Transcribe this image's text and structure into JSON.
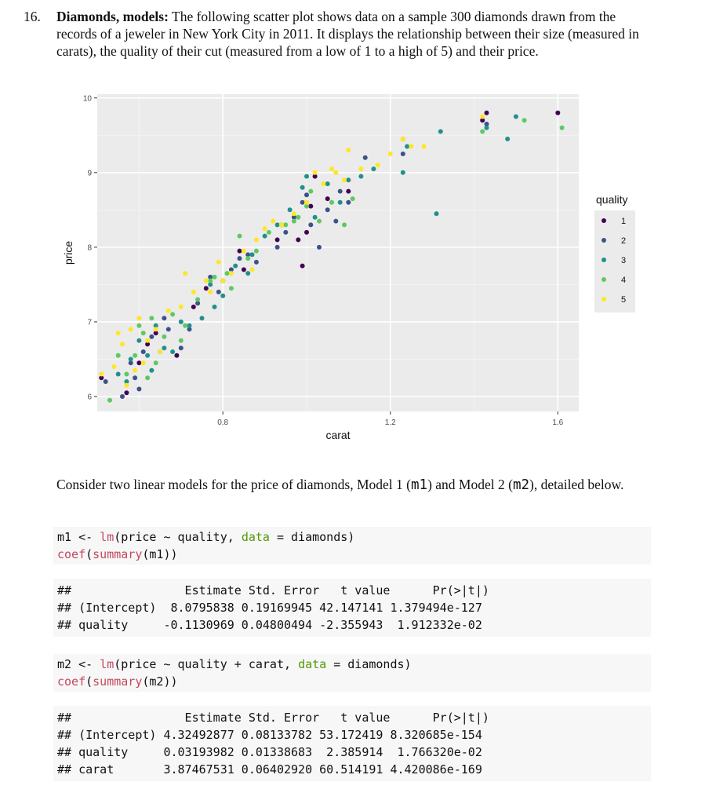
{
  "problem": {
    "number": "16.",
    "title": "Diamonds, models:",
    "intro": "The following scatter plot shows data on a sample 300 diamonds drawn from the records of a jeweler in New York City in 2011. It displays the relationship between their size (measured in carats), the quality of their cut (measured from a low of 1 to a high of 5) and their price."
  },
  "chart_data": {
    "type": "scatter",
    "xlabel": "carat",
    "ylabel": "price",
    "xlim": [
      0.5,
      1.65
    ],
    "ylim": [
      5.8,
      10.05
    ],
    "x_ticks": [
      0.8,
      1.2,
      1.6
    ],
    "x_tick_labels": [
      "0.8",
      "1.2",
      "1.6"
    ],
    "y_ticks": [
      6,
      7,
      8,
      9,
      10
    ],
    "y_tick_labels": [
      "6",
      "7",
      "8",
      "9",
      "10"
    ],
    "grid": true,
    "legend_title": "quality",
    "legend_position": "right",
    "series": [
      {
        "name": "1",
        "color": "#440154",
        "points": [
          [
            0.51,
            6.25
          ],
          [
            0.57,
            6.05
          ],
          [
            0.6,
            6.45
          ],
          [
            0.64,
            6.85
          ],
          [
            0.73,
            7.2
          ],
          [
            0.76,
            7.45
          ],
          [
            0.84,
            7.95
          ],
          [
            0.85,
            7.7
          ],
          [
            0.98,
            8.1
          ],
          [
            0.99,
            7.75
          ],
          [
            1.0,
            8.2
          ],
          [
            1.01,
            8.55
          ],
          [
            1.02,
            8.95
          ],
          [
            1.1,
            8.75
          ],
          [
            1.42,
            9.7
          ],
          [
            1.43,
            9.8
          ],
          [
            1.6,
            9.8
          ],
          [
            0.8,
            7.55
          ],
          [
            0.93,
            8.1
          ],
          [
            1.05,
            8.65
          ],
          [
            0.62,
            6.7
          ],
          [
            0.69,
            6.55
          ]
        ]
      },
      {
        "name": "2",
        "color": "#3b528b",
        "points": [
          [
            0.52,
            6.2
          ],
          [
            0.56,
            6.0
          ],
          [
            0.59,
            6.25
          ],
          [
            0.61,
            6.6
          ],
          [
            0.63,
            6.8
          ],
          [
            0.65,
            6.6
          ],
          [
            0.67,
            6.9
          ],
          [
            0.7,
            6.65
          ],
          [
            0.74,
            7.25
          ],
          [
            0.77,
            7.6
          ],
          [
            0.82,
            7.7
          ],
          [
            0.84,
            7.85
          ],
          [
            0.86,
            7.9
          ],
          [
            0.93,
            8.0
          ],
          [
            0.94,
            8.3
          ],
          [
            0.97,
            8.4
          ],
          [
            0.99,
            8.6
          ],
          [
            1.01,
            8.3
          ],
          [
            1.03,
            8.0
          ],
          [
            1.05,
            8.5
          ],
          [
            1.08,
            8.75
          ],
          [
            1.1,
            8.6
          ],
          [
            1.14,
            9.2
          ],
          [
            1.23,
            9.25
          ],
          [
            1.43,
            9.65
          ],
          [
            0.58,
            6.45
          ],
          [
            0.66,
            7.05
          ],
          [
            0.95,
            8.2
          ],
          [
            1.07,
            8.35
          ],
          [
            0.88,
            7.8
          ],
          [
            0.79,
            7.4
          ],
          [
            0.6,
            6.1
          ],
          [
            1.0,
            8.7
          ],
          [
            0.72,
            6.9
          ]
        ]
      },
      {
        "name": "3",
        "color": "#21908c",
        "points": [
          [
            0.55,
            6.3
          ],
          [
            0.58,
            6.5
          ],
          [
            0.6,
            6.75
          ],
          [
            0.62,
            6.55
          ],
          [
            0.64,
            6.95
          ],
          [
            0.66,
            6.65
          ],
          [
            0.7,
            7.0
          ],
          [
            0.75,
            7.05
          ],
          [
            0.77,
            7.5
          ],
          [
            0.8,
            7.35
          ],
          [
            0.83,
            7.75
          ],
          [
            0.87,
            7.9
          ],
          [
            0.93,
            8.3
          ],
          [
            0.96,
            8.5
          ],
          [
            0.99,
            8.8
          ],
          [
            1.02,
            8.4
          ],
          [
            1.05,
            8.85
          ],
          [
            1.08,
            8.6
          ],
          [
            1.1,
            8.9
          ],
          [
            1.13,
            8.95
          ],
          [
            1.16,
            9.05
          ],
          [
            1.23,
            9.0
          ],
          [
            1.24,
            9.35
          ],
          [
            1.31,
            8.45
          ],
          [
            1.32,
            9.55
          ],
          [
            1.43,
            9.6
          ],
          [
            1.48,
            9.45
          ],
          [
            1.5,
            9.75
          ],
          [
            0.68,
            6.6
          ],
          [
            0.72,
            6.95
          ],
          [
            0.57,
            6.2
          ],
          [
            0.63,
            6.35
          ],
          [
            0.9,
            8.15
          ],
          [
            1.0,
            8.95
          ],
          [
            0.86,
            7.65
          ],
          [
            0.78,
            7.2
          ]
        ]
      },
      {
        "name": "4",
        "color": "#5ec962",
        "points": [
          [
            0.53,
            5.95
          ],
          [
            0.57,
            6.3
          ],
          [
            0.59,
            6.55
          ],
          [
            0.61,
            6.85
          ],
          [
            0.63,
            7.05
          ],
          [
            0.66,
            6.8
          ],
          [
            0.68,
            7.1
          ],
          [
            0.71,
            6.95
          ],
          [
            0.74,
            7.3
          ],
          [
            0.77,
            7.55
          ],
          [
            0.81,
            7.65
          ],
          [
            0.84,
            8.15
          ],
          [
            0.86,
            7.85
          ],
          [
            0.91,
            8.2
          ],
          [
            0.95,
            8.3
          ],
          [
            0.98,
            8.4
          ],
          [
            1.0,
            8.55
          ],
          [
            1.03,
            8.35
          ],
          [
            1.06,
            8.6
          ],
          [
            1.09,
            8.3
          ],
          [
            1.11,
            8.65
          ],
          [
            1.23,
            9.45
          ],
          [
            1.42,
            9.55
          ],
          [
            1.52,
            9.7
          ],
          [
            1.61,
            9.6
          ],
          [
            0.6,
            6.95
          ],
          [
            0.64,
            6.45
          ],
          [
            0.7,
            6.75
          ],
          [
            0.82,
            7.45
          ],
          [
            0.97,
            8.35
          ],
          [
            1.01,
            8.75
          ],
          [
            0.55,
            6.55
          ],
          [
            0.62,
            6.25
          ],
          [
            0.78,
            7.6
          ],
          [
            0.88,
            7.95
          ]
        ]
      },
      {
        "name": "5",
        "color": "#fde725",
        "points": [
          [
            0.51,
            6.3
          ],
          [
            0.54,
            6.4
          ],
          [
            0.56,
            6.7
          ],
          [
            0.58,
            6.9
          ],
          [
            0.6,
            7.05
          ],
          [
            0.62,
            6.75
          ],
          [
            0.64,
            6.9
          ],
          [
            0.67,
            7.15
          ],
          [
            0.7,
            7.2
          ],
          [
            0.73,
            7.4
          ],
          [
            0.76,
            7.55
          ],
          [
            0.79,
            7.8
          ],
          [
            0.82,
            7.65
          ],
          [
            0.85,
            7.95
          ],
          [
            0.88,
            8.1
          ],
          [
            0.9,
            8.25
          ],
          [
            0.94,
            8.3
          ],
          [
            0.97,
            8.45
          ],
          [
            1.0,
            8.6
          ],
          [
            1.02,
            9.0
          ],
          [
            1.04,
            8.85
          ],
          [
            1.07,
            9.0
          ],
          [
            1.1,
            9.3
          ],
          [
            1.13,
            9.05
          ],
          [
            1.17,
            9.1
          ],
          [
            1.2,
            9.25
          ],
          [
            1.23,
            9.45
          ],
          [
            1.25,
            9.35
          ],
          [
            1.28,
            9.35
          ],
          [
            1.42,
            9.75
          ],
          [
            0.55,
            6.85
          ],
          [
            0.59,
            6.35
          ],
          [
            0.65,
            6.6
          ],
          [
            0.71,
            7.65
          ],
          [
            0.77,
            7.4
          ],
          [
            0.8,
            7.55
          ],
          [
            0.87,
            7.7
          ],
          [
            0.92,
            8.35
          ],
          [
            1.06,
            9.05
          ],
          [
            1.09,
            8.9
          ],
          [
            0.57,
            6.15
          ],
          [
            0.61,
            6.45
          ]
        ]
      }
    ]
  },
  "para": {
    "prefix": "Consider two linear models for the price of diamonds, Model 1 (",
    "m1": "m1",
    "mid": ") and Model 2 (",
    "m2": "m2",
    "suffix": "), detailed below."
  },
  "code1": {
    "l1_a": "m1 <- ",
    "l1_fn": "lm",
    "l1_b": "(price ~ quality, ",
    "l1_kw": "data",
    "l1_c": " = diamonds)",
    "l2_fn": "coef",
    "l2_a": "(",
    "l2_fn2": "summary",
    "l2_b": "(m1))"
  },
  "out1": {
    "lines": [
      "##                Estimate Std. Error   t value      Pr(>|t|)",
      "## (Intercept)  8.0795838 0.19169945 42.147141 1.379494e-127",
      "## quality     -0.1130969 0.04800494 -2.355943  1.912332e-02"
    ]
  },
  "code2": {
    "l1_a": "m2 <- ",
    "l1_fn": "lm",
    "l1_b": "(price ~ quality + carat, ",
    "l1_kw": "data",
    "l1_c": " = diamonds)",
    "l2_fn": "coef",
    "l2_a": "(",
    "l2_fn2": "summary",
    "l2_b": "(m2))"
  },
  "out2": {
    "lines": [
      "##                Estimate Std. Error   t value      Pr(>|t|)",
      "## (Intercept) 4.32492877 0.08133782 53.172419 8.320685e-154",
      "## quality     0.03193982 0.01338683  2.385914  1.766320e-02",
      "## carat       3.87467531 0.06402920 60.514191 4.420086e-169"
    ]
  }
}
